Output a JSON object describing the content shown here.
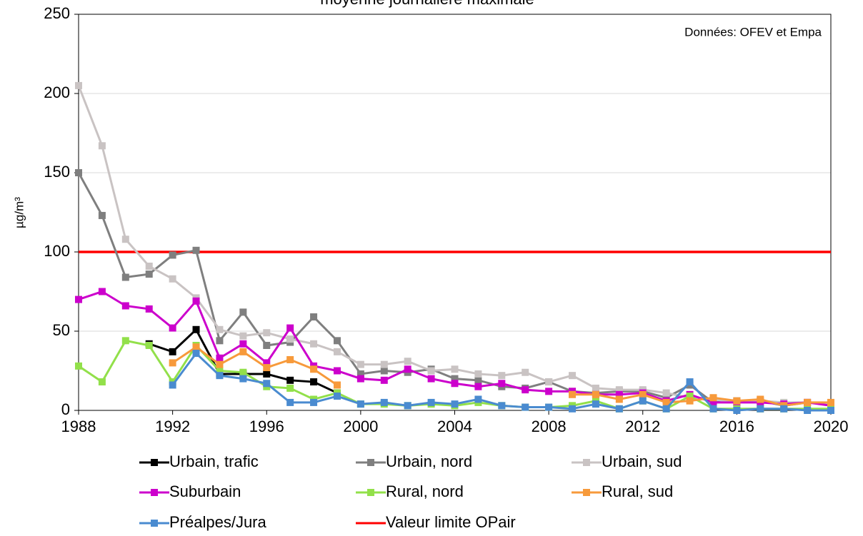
{
  "chart_data": {
    "type": "line",
    "title": "moyenne journalière maximale",
    "annotation": "Données: OFEV et Empa",
    "ylabel": "µg/m³",
    "x": [
      1988,
      1989,
      1990,
      1991,
      1992,
      1993,
      1994,
      1995,
      1996,
      1997,
      1998,
      1999,
      2000,
      2001,
      2002,
      2003,
      2004,
      2005,
      2006,
      2007,
      2008,
      2009,
      2010,
      2011,
      2012,
      2013,
      2014,
      2015,
      2016,
      2017,
      2018,
      2019,
      2020
    ],
    "xlim": [
      1988,
      2020
    ],
    "xticks": [
      1988,
      1992,
      1996,
      2000,
      2004,
      2008,
      2012,
      2016,
      2020
    ],
    "ylim": [
      0,
      250
    ],
    "yticks": [
      0,
      50,
      100,
      150,
      200,
      250
    ],
    "grid": true,
    "series": [
      {
        "name": "Urbain, trafic",
        "color": "#000000",
        "values": [
          null,
          null,
          null,
          42,
          37,
          51,
          23,
          23,
          23,
          19,
          18,
          11,
          null,
          null,
          null,
          null,
          null,
          null,
          null,
          null,
          null,
          null,
          null,
          null,
          null,
          null,
          null,
          null,
          null,
          null,
          null,
          null,
          null
        ]
      },
      {
        "name": "Urbain, nord",
        "color": "#7f7f7f",
        "values": [
          150,
          123,
          84,
          86,
          98,
          101,
          44,
          62,
          41,
          43,
          59,
          44,
          23,
          25,
          24,
          26,
          20,
          19,
          15,
          14,
          18,
          12,
          11,
          12,
          12,
          8,
          16,
          5,
          6,
          6,
          3,
          5,
          4
        ]
      },
      {
        "name": "Urbain, sud",
        "color": "#c9c3c3",
        "values": [
          205,
          167,
          108,
          91,
          83,
          71,
          51,
          47,
          49,
          45,
          42,
          37,
          29,
          29,
          31,
          25,
          26,
          23,
          22,
          24,
          18,
          22,
          14,
          13,
          13,
          11,
          8,
          7,
          5,
          6,
          5,
          5,
          4
        ]
      },
      {
        "name": "Suburbain",
        "color": "#cc00cc",
        "values": [
          70,
          75,
          66,
          64,
          52,
          69,
          33,
          42,
          30,
          52,
          28,
          25,
          20,
          19,
          26,
          20,
          17,
          15,
          17,
          13,
          12,
          12,
          10,
          10,
          11,
          6,
          10,
          5,
          5,
          5,
          4,
          5,
          3
        ]
      },
      {
        "name": "Rural, nord",
        "color": "#92e04a",
        "values": [
          28,
          18,
          44,
          41,
          18,
          41,
          25,
          24,
          15,
          14,
          7,
          11,
          4,
          4,
          3,
          4,
          3,
          5,
          3,
          2,
          2,
          3,
          6,
          1,
          6,
          1,
          9,
          1,
          1,
          1,
          1,
          1,
          1
        ]
      },
      {
        "name": "Rural, sud",
        "color": "#f79a3b",
        "values": [
          null,
          null,
          null,
          null,
          30,
          40,
          29,
          37,
          27,
          32,
          26,
          16,
          null,
          null,
          null,
          null,
          null,
          null,
          null,
          null,
          null,
          10,
          10,
          7,
          10,
          5,
          6,
          8,
          6,
          7,
          3,
          5,
          5
        ]
      },
      {
        "name": "Préalpes/Jura",
        "color": "#4a8bd0",
        "values": [
          null,
          null,
          null,
          null,
          16,
          36,
          22,
          20,
          17,
          5,
          5,
          9,
          4,
          5,
          3,
          5,
          4,
          7,
          3,
          2,
          2,
          1,
          4,
          1,
          6,
          1,
          18,
          1,
          0,
          1,
          1,
          0,
          0
        ]
      }
    ],
    "limit": {
      "name": "Valeur limite OPair",
      "color": "#ff0000",
      "value": 100
    }
  }
}
